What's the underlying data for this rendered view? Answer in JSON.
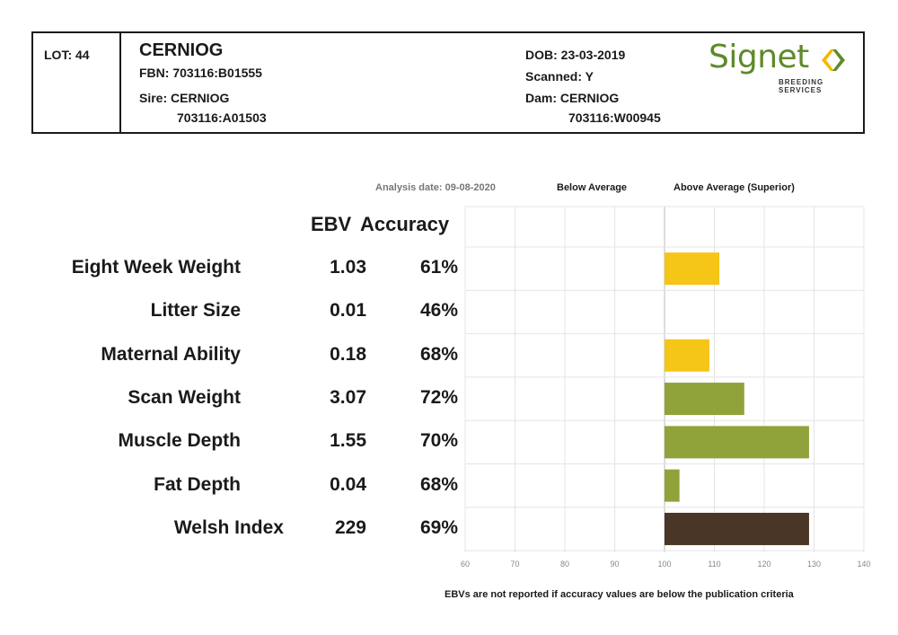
{
  "header": {
    "lot": "LOT: 44",
    "name": "CERNIOG",
    "fbn": "FBN: 703116:B01555",
    "sire": "Sire: CERNIOG",
    "sire_id": "703116:A01503",
    "dob": "DOB: 23-03-2019",
    "scanned": "Scanned: Y",
    "dam": "Dam: CERNIOG",
    "dam_id": "703116:W00945",
    "logo_text": "Signet",
    "logo_subtitle": "BREEDING SERVICES"
  },
  "chart_header": {
    "analysis_date": "Analysis date: 09-08-2020",
    "below_average": "Below Average",
    "above_average": "Above Average (Superior)",
    "col_ebv": "EBV",
    "col_accuracy": "Accuracy"
  },
  "footnote": "EBVs are not reported if accuracy values are below the publication criteria",
  "colors": {
    "yellow": "#f5c518",
    "green": "#8fa33a",
    "brown": "#4a3626"
  },
  "chart_data": {
    "type": "bar",
    "orientation": "horizontal",
    "baseline": 100,
    "xlim": [
      60,
      140
    ],
    "x_ticks": [
      60,
      70,
      80,
      90,
      100,
      110,
      120,
      130,
      140
    ],
    "grid": true,
    "rows": [
      {
        "trait": "Eight Week Weight",
        "ebv": "1.03",
        "accuracy": "61%",
        "value": 111,
        "color": "yellow"
      },
      {
        "trait": "Litter Size",
        "ebv": "0.01",
        "accuracy": "46%",
        "value": null,
        "color": "yellow"
      },
      {
        "trait": "Maternal Ability",
        "ebv": "0.18",
        "accuracy": "68%",
        "value": 109,
        "color": "yellow"
      },
      {
        "trait": "Scan Weight",
        "ebv": "3.07",
        "accuracy": "72%",
        "value": 116,
        "color": "green"
      },
      {
        "trait": "Muscle Depth",
        "ebv": "1.55",
        "accuracy": "70%",
        "value": 129,
        "color": "green"
      },
      {
        "trait": "Fat Depth",
        "ebv": "0.04",
        "accuracy": "68%",
        "value": 103,
        "color": "green"
      },
      {
        "trait": "Welsh Index",
        "ebv": "229",
        "accuracy": "69%",
        "value": 129,
        "color": "brown"
      }
    ]
  }
}
